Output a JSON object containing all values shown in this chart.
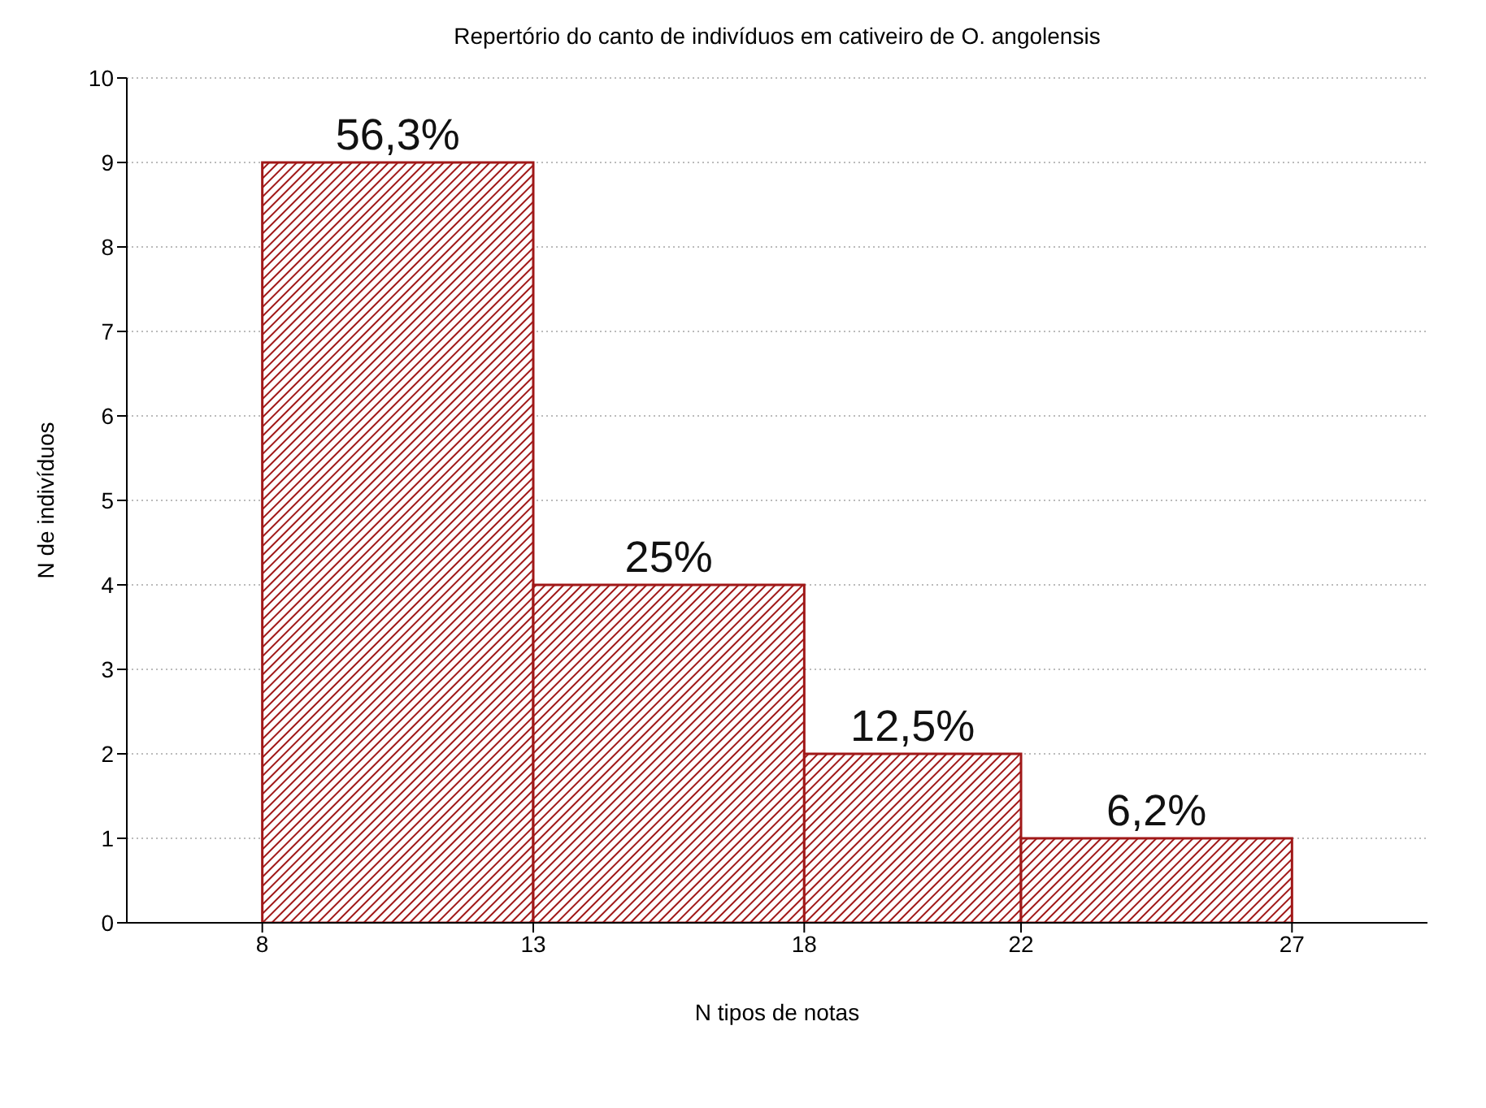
{
  "chart_data": {
    "type": "histogram",
    "title": "Repertório do canto de indivíduos em cativeiro de O. angolensis",
    "xlabel": "N tipos de notas",
    "ylabel": "N de indivíduos",
    "bins": [
      8,
      13,
      18,
      22,
      27
    ],
    "values": [
      9,
      4,
      2,
      1
    ],
    "color": "#a01818",
    "annotations": [
      {
        "text": "56,3%",
        "x": 10.5,
        "y": 9
      },
      {
        "text": "25%",
        "x": 15.5,
        "y": 4
      },
      {
        "text": "12,5%",
        "x": 20,
        "y": 2
      },
      {
        "text": "6,2%",
        "x": 24.5,
        "y": 1
      }
    ],
    "xlim": [
      5.5,
      29.5
    ],
    "xticks": [
      8,
      13,
      18,
      22,
      27
    ],
    "ylim": [
      0,
      10
    ],
    "yticks": [
      0,
      1,
      2,
      3,
      4,
      5,
      6,
      7,
      8,
      9,
      10
    ],
    "grid": "y"
  }
}
